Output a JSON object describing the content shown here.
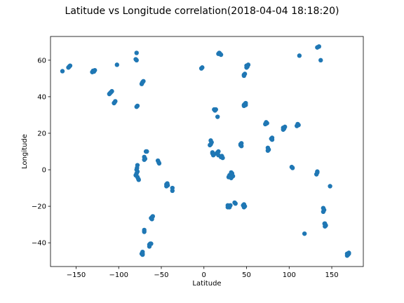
{
  "chart_data": {
    "type": "scatter",
    "title": "Latitude vs Longitude correlation(2018-04-04 18:18:20)",
    "xlabel": "Latitude",
    "ylabel": "Longitude",
    "xlim": [
      -180,
      187
    ],
    "ylim": [
      -53,
      73
    ],
    "xticks": [
      -150,
      -100,
      -50,
      0,
      50,
      100,
      150
    ],
    "xtick_labels": [
      "−150",
      "−100",
      "−50",
      "0",
      "50",
      "100",
      "150"
    ],
    "yticks": [
      -40,
      -20,
      0,
      20,
      40,
      60
    ],
    "ytick_labels": [
      "−40",
      "−20",
      "0",
      "20",
      "40",
      "60"
    ],
    "grid": false,
    "legend": false,
    "marker_color": "#1f77b4",
    "points": [
      [
        -166,
        54
      ],
      [
        -158,
        56.5
      ],
      [
        -157,
        57
      ],
      [
        -159,
        56
      ],
      [
        -131,
        53.5
      ],
      [
        -128,
        54.5
      ],
      [
        -129,
        53.8
      ],
      [
        -130,
        54.2
      ],
      [
        -110,
        42
      ],
      [
        -108,
        43
      ],
      [
        -111,
        41.5
      ],
      [
        -109,
        42.5
      ],
      [
        -105,
        36.8
      ],
      [
        -104,
        37.5
      ],
      [
        -105.5,
        36.5
      ],
      [
        -102,
        57.5
      ],
      [
        -79,
        64
      ],
      [
        -80,
        60.5
      ],
      [
        -79,
        60
      ],
      [
        -78,
        35
      ],
      [
        -79,
        34.5
      ],
      [
        -72,
        48
      ],
      [
        -71,
        48.5
      ],
      [
        -73,
        47
      ],
      [
        -72.5,
        47.5
      ],
      [
        -68,
        10
      ],
      [
        -67,
        10
      ],
      [
        -70,
        7
      ],
      [
        -69,
        6
      ],
      [
        -70,
        5.5
      ],
      [
        -78,
        2.5
      ],
      [
        -78.5,
        1
      ],
      [
        -79,
        0
      ],
      [
        -78,
        -1
      ],
      [
        -79,
        -2
      ],
      [
        -80,
        -3
      ],
      [
        -78,
        -4
      ],
      [
        -77,
        -5
      ],
      [
        -76.5,
        -5.5
      ],
      [
        -54,
        5
      ],
      [
        -53,
        4
      ],
      [
        -52.5,
        3.5
      ],
      [
        -44,
        -8
      ],
      [
        -43,
        -7.5
      ],
      [
        -44,
        -9
      ],
      [
        -42.5,
        -8.5
      ],
      [
        -37,
        -10
      ],
      [
        -37,
        -11.5
      ],
      [
        -61,
        -26
      ],
      [
        -62,
        -26.5
      ],
      [
        -60,
        -25.5
      ],
      [
        -61,
        -27
      ],
      [
        -70,
        -33
      ],
      [
        -70,
        -34
      ],
      [
        -63,
        -40.5
      ],
      [
        -64,
        -41
      ],
      [
        -64,
        -42
      ],
      [
        -62,
        -40.5
      ],
      [
        -72,
        -45
      ],
      [
        -72,
        -46
      ],
      [
        -72,
        -46.5
      ],
      [
        -73,
        -46
      ],
      [
        -2,
        56
      ],
      [
        -3,
        55.5
      ],
      [
        18,
        64
      ],
      [
        19,
        63.5
      ],
      [
        20,
        63
      ],
      [
        17,
        63.5
      ],
      [
        8,
        16
      ],
      [
        8,
        14
      ],
      [
        9,
        15
      ],
      [
        7,
        13.5
      ],
      [
        10,
        9
      ],
      [
        11,
        8
      ],
      [
        10,
        9.5
      ],
      [
        12,
        8.5
      ],
      [
        15,
        9
      ],
      [
        16,
        9.5
      ],
      [
        17,
        10
      ],
      [
        17,
        8
      ],
      [
        20,
        7
      ],
      [
        21,
        7.5
      ],
      [
        22,
        6.5
      ],
      [
        12,
        33
      ],
      [
        13,
        32.5
      ],
      [
        14,
        33
      ],
      [
        16,
        29
      ],
      [
        30,
        -3
      ],
      [
        31,
        -3.5
      ],
      [
        32,
        -4.5
      ],
      [
        33,
        -2
      ],
      [
        32,
        -1.5
      ],
      [
        29,
        -4
      ],
      [
        34,
        -3.5
      ],
      [
        28,
        -19.5
      ],
      [
        29,
        -20
      ],
      [
        30,
        -20.5
      ],
      [
        28,
        -20.5
      ],
      [
        31,
        -19.5
      ],
      [
        36,
        -18
      ],
      [
        37,
        -18.5
      ],
      [
        47,
        -19
      ],
      [
        48,
        -20
      ],
      [
        46,
        -19.5
      ],
      [
        47,
        -20.5
      ],
      [
        43,
        13.5
      ],
      [
        44,
        14.5
      ],
      [
        43,
        14
      ],
      [
        44,
        13
      ],
      [
        47,
        52
      ],
      [
        48,
        52.5
      ],
      [
        47,
        51.5
      ],
      [
        48,
        36
      ],
      [
        47,
        35.5
      ],
      [
        49,
        36.5
      ],
      [
        47,
        35
      ],
      [
        49,
        35.5
      ],
      [
        50,
        57
      ],
      [
        52,
        57.5
      ],
      [
        51,
        56.5
      ],
      [
        50,
        56
      ],
      [
        73,
        26
      ],
      [
        74,
        25.5
      ],
      [
        72,
        25
      ],
      [
        75,
        12
      ],
      [
        76,
        11
      ],
      [
        75,
        10.5
      ],
      [
        79,
        17
      ],
      [
        80,
        16.5
      ],
      [
        80,
        17.5
      ],
      [
        93,
        23
      ],
      [
        94,
        22.5
      ],
      [
        93,
        22
      ],
      [
        95,
        23.5
      ],
      [
        103,
        1.5
      ],
      [
        104,
        1
      ],
      [
        110,
        25
      ],
      [
        111,
        24.5
      ],
      [
        109,
        24
      ],
      [
        112,
        62.5
      ],
      [
        133,
        67
      ],
      [
        135,
        67.5
      ],
      [
        137,
        60
      ],
      [
        133,
        -1
      ],
      [
        132,
        -2.5
      ],
      [
        133,
        -1.5
      ],
      [
        140,
        -21
      ],
      [
        141,
        -22
      ],
      [
        140,
        -23
      ],
      [
        142,
        -29.5
      ],
      [
        143,
        -30.5
      ],
      [
        142,
        -31
      ],
      [
        141.5,
        -29.5
      ],
      [
        148,
        -9
      ],
      [
        118,
        -35
      ],
      [
        168,
        -46
      ],
      [
        169,
        -46.5
      ],
      [
        170,
        -45.5
      ],
      [
        168,
        -47
      ],
      [
        170,
        -46
      ]
    ]
  }
}
